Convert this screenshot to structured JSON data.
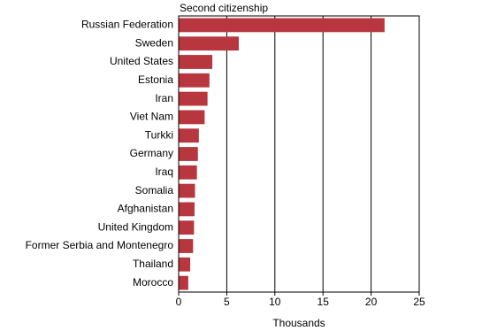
{
  "chart_data": {
    "type": "bar",
    "orientation": "horizontal",
    "title": "Second citizenship",
    "x_label": "Thousands",
    "categories": [
      "Russian Federation",
      "Sweden",
      "United States",
      "Estonia",
      "Iran",
      "Viet Nam",
      "Turkki",
      "Germany",
      "Iraq",
      "Somalia",
      "Afghanistan",
      "United Kingdom",
      "Former Serbia and Montenegro",
      "Thailand",
      "Morocco"
    ],
    "values": [
      21.4,
      6.25,
      3.5,
      3.2,
      3.0,
      2.7,
      2.1,
      2.0,
      1.9,
      1.7,
      1.65,
      1.6,
      1.5,
      1.2,
      1.0
    ],
    "color": "#b8373f",
    "xlim": [
      0,
      25
    ],
    "xticks": [
      0,
      5,
      10,
      15,
      20,
      25
    ],
    "grid": true
  }
}
